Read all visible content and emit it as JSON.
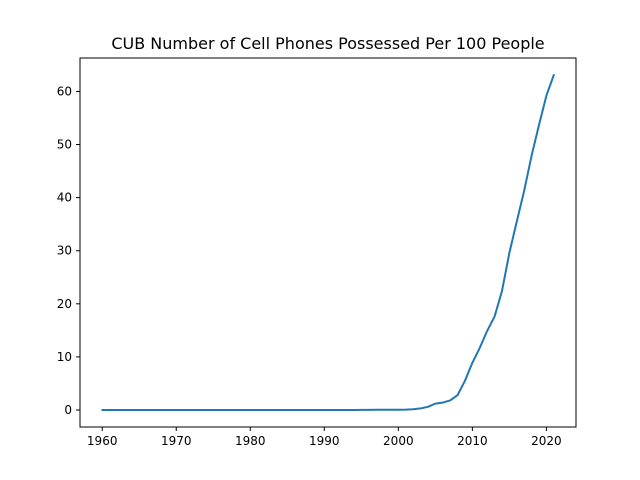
{
  "chart_data": {
    "type": "line",
    "title": "CUB Number of Cell Phones Possessed Per 100 People",
    "xlabel": "",
    "ylabel": "",
    "grid": false,
    "xlim": [
      1957,
      2024
    ],
    "ylim": [
      -3.2,
      66.3
    ],
    "x_ticks": [
      1960,
      1970,
      1980,
      1990,
      2000,
      2010,
      2020
    ],
    "y_ticks": [
      0,
      10,
      20,
      30,
      40,
      50,
      60
    ],
    "series": [
      {
        "color": "#1f77b4",
        "x": [
          1960,
          1961,
          1962,
          1963,
          1964,
          1965,
          1966,
          1967,
          1968,
          1969,
          1970,
          1971,
          1972,
          1973,
          1974,
          1975,
          1976,
          1977,
          1978,
          1979,
          1980,
          1981,
          1982,
          1983,
          1984,
          1985,
          1986,
          1987,
          1988,
          1989,
          1990,
          1991,
          1992,
          1993,
          1994,
          1995,
          1996,
          1997,
          1998,
          1999,
          2000,
          2001,
          2002,
          2003,
          2004,
          2005,
          2006,
          2007,
          2008,
          2009,
          2010,
          2011,
          2012,
          2013,
          2014,
          2015,
          2016,
          2017,
          2018,
          2019,
          2020,
          2021
        ],
        "y": [
          0,
          0,
          0,
          0,
          0,
          0,
          0,
          0,
          0,
          0,
          0,
          0,
          0,
          0,
          0,
          0,
          0,
          0,
          0,
          0,
          0,
          0,
          0,
          0,
          0,
          0,
          0,
          0,
          0,
          0,
          0,
          0,
          0,
          0,
          0.01,
          0.02,
          0.03,
          0.05,
          0.06,
          0.06,
          0.06,
          0.08,
          0.15,
          0.3,
          0.6,
          1.2,
          1.4,
          1.8,
          2.8,
          5.5,
          8.9,
          11.7,
          14.9,
          17.6,
          22.4,
          29.6,
          35.5,
          41.3,
          47.9,
          53.7,
          59.2,
          63.1
        ]
      }
    ]
  }
}
